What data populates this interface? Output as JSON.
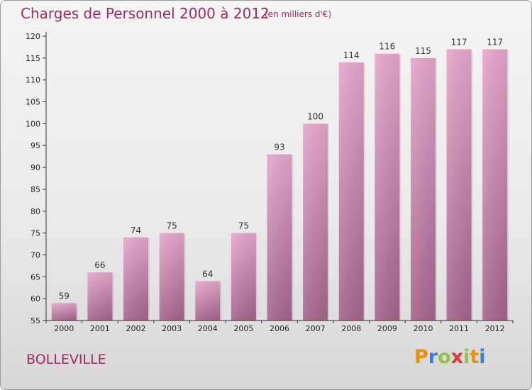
{
  "header": {
    "title": "Charges de Personnel 2000 à 2012",
    "unit_note": "(en milliers d'€)"
  },
  "footer": {
    "commune": "BOLLEVILLE",
    "logo": "Proxiti"
  },
  "colors": {
    "accent": "#a02a63",
    "bar_light": "#e6a6cb",
    "bar_dark": "#a5648b",
    "axis": "#333333"
  },
  "chart_data": {
    "type": "bar",
    "title": "Charges de Personnel 2000 à 2012",
    "subtitle": "(en milliers d'€)",
    "categories": [
      "2000",
      "2001",
      "2002",
      "2003",
      "2004",
      "2005",
      "2006",
      "2007",
      "2008",
      "2009",
      "2010",
      "2011",
      "2012"
    ],
    "values": [
      59,
      66,
      74,
      75,
      64,
      75,
      93,
      100,
      114,
      116,
      115,
      117,
      117
    ],
    "ylim": [
      55,
      120
    ],
    "yticks": [
      55,
      60,
      65,
      70,
      75,
      80,
      85,
      90,
      95,
      100,
      105,
      110,
      115,
      120
    ],
    "xlabel": "",
    "ylabel": "",
    "grid": false,
    "legend": "none"
  }
}
